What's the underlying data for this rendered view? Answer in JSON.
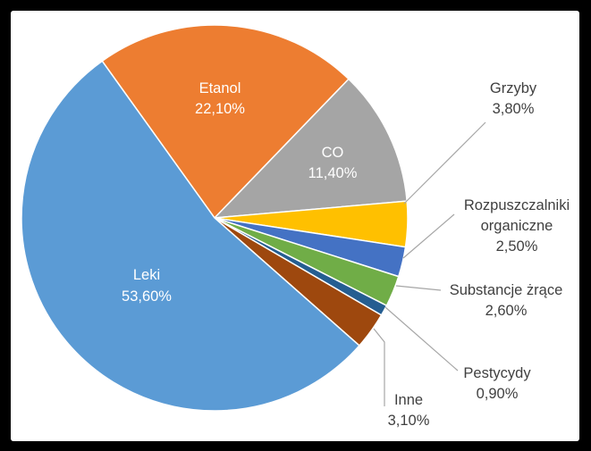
{
  "chart_data": {
    "type": "pie",
    "slices": [
      {
        "name": "Leki",
        "label": "Leki",
        "value_text": "53,60%",
        "value": 53.6,
        "color": "#5B9BD5"
      },
      {
        "name": "Etanol",
        "label": "Etanol",
        "value_text": "22,10%",
        "value": 22.1,
        "color": "#ED7D31"
      },
      {
        "name": "CO",
        "label": "CO",
        "value_text": "11,40%",
        "value": 11.4,
        "color": "#A5A5A5"
      },
      {
        "name": "Grzyby",
        "label": "Grzyby",
        "value_text": "3,80%",
        "value": 3.8,
        "color": "#FFC000"
      },
      {
        "name": "Rozpuszczalniki organiczne",
        "label_lines": [
          "Rozpuszczalniki",
          "organiczne"
        ],
        "value_text": "2,50%",
        "value": 2.5,
        "color": "#4472C4"
      },
      {
        "name": "Substancje żrące",
        "label": "Substancje żrące",
        "value_text": "2,60%",
        "value": 2.6,
        "color": "#70AD47"
      },
      {
        "name": "Pestycydy",
        "label": "Pestycydy",
        "value_text": "0,90%",
        "value": 0.9,
        "color": "#255E91"
      },
      {
        "name": "Inne",
        "label": "Inne",
        "value_text": "3,10%",
        "value": 3.1,
        "color": "#9E480E"
      }
    ]
  }
}
